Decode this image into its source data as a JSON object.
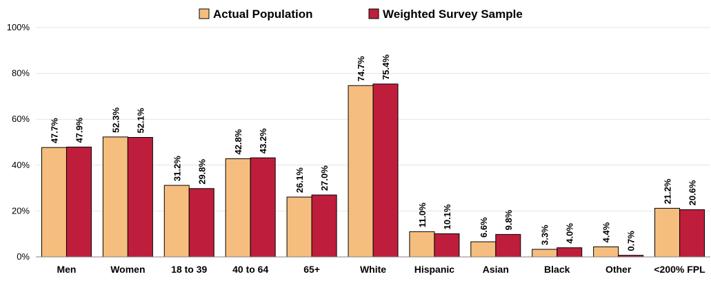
{
  "chart_data": {
    "type": "bar",
    "title": "",
    "xlabel": "",
    "ylabel": "",
    "categories": [
      "Men",
      "Women",
      "18 to 39",
      "40 to 64",
      "65+",
      "White",
      "Hispanic",
      "Asian",
      "Black",
      "Other",
      "<200% FPL"
    ],
    "series": [
      {
        "name": "Actual Population",
        "color": "#F5BE7E",
        "values": [
          47.7,
          52.3,
          31.2,
          42.8,
          26.1,
          74.7,
          11.0,
          6.6,
          3.3,
          4.4,
          21.2
        ],
        "labels": [
          "47.7%",
          "52.3%",
          "31.2%",
          "42.8%",
          "26.1%",
          "74.7%",
          "11.0%",
          "6.6%",
          "3.3%",
          "4.4%",
          "21.2%"
        ]
      },
      {
        "name": "Weighted Survey Sample",
        "color": "#BE1E3C",
        "values": [
          47.9,
          52.1,
          29.8,
          43.2,
          27.0,
          75.4,
          10.1,
          9.8,
          4.0,
          0.7,
          20.6
        ],
        "labels": [
          "47.9%",
          "52.1%",
          "29.8%",
          "43.2%",
          "27.0%",
          "75.4%",
          "10.1%",
          "9.8%",
          "4.0%",
          "0.7%",
          "20.6%"
        ]
      }
    ],
    "ylim": [
      0,
      100
    ],
    "yticks": [
      0,
      20,
      40,
      60,
      80,
      100
    ],
    "ytick_labels": [
      "0%",
      "20%",
      "40%",
      "60%",
      "80%",
      "100%"
    ],
    "grid": true,
    "legend_position": "top-center"
  }
}
